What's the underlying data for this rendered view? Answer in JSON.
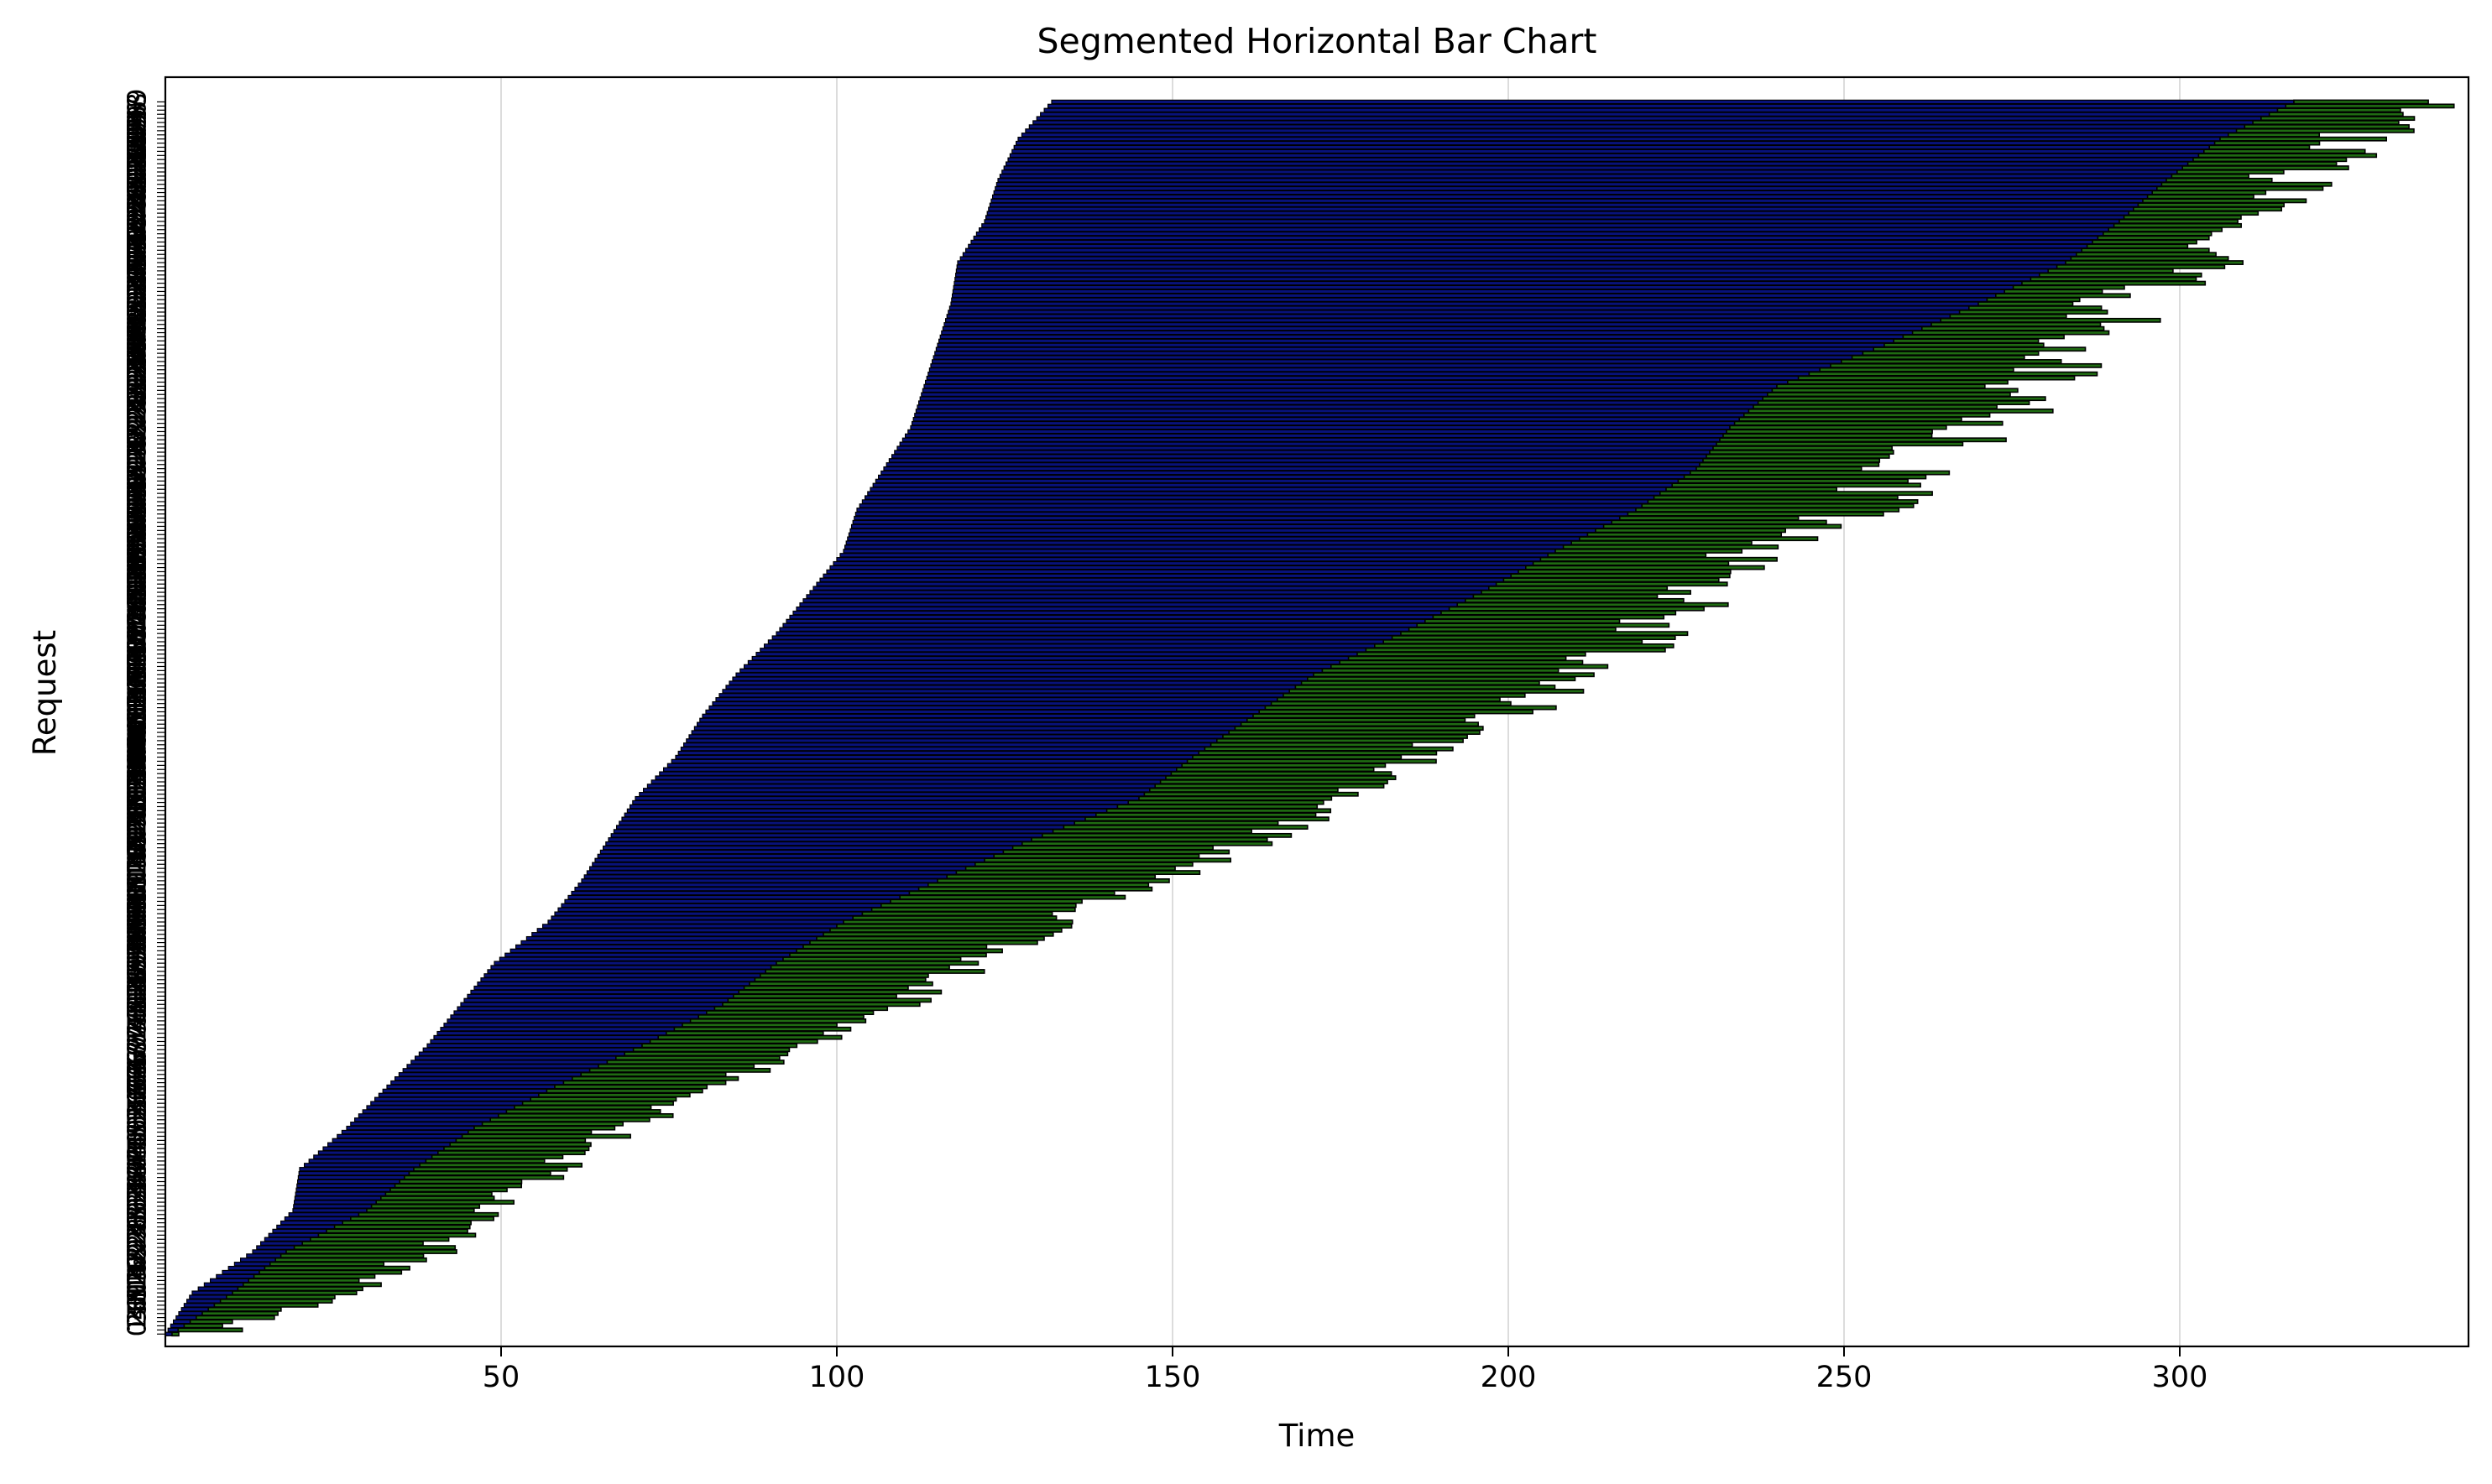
{
  "chart_data": {
    "type": "bar",
    "orientation": "horizontal",
    "stacked": true,
    "title": "Segmented Horizontal Bar Chart",
    "xlabel": "Time",
    "ylabel": "Request",
    "xlim": [
      0,
      343
    ],
    "ylim": [
      -3,
      305
    ],
    "grid": "x",
    "legend": "none",
    "x_ticks": [
      50,
      100,
      150,
      200,
      250,
      300
    ],
    "y_ticks_note": "one tick label per request index 0–299, overlapping into an illegible column",
    "y_tick_labels_visible": [
      "0",
      "5",
      "7"
    ],
    "category_count": 300,
    "colors": {
      "wait": "#08127a",
      "service": "#1f6b12",
      "edge": "#000000",
      "grid": "#dcdcdc"
    },
    "series": [
      {
        "segment": "wait",
        "role": "first segment of each bar",
        "color": "#08127a"
      },
      {
        "segment": "service",
        "role": "second segment of each bar",
        "color": "#1f6b12"
      }
    ],
    "control_points": {
      "request": [
        0,
        10,
        20,
        30,
        40,
        50,
        60,
        70,
        80,
        90,
        100,
        110,
        120,
        130,
        140,
        150,
        160,
        170,
        180,
        190,
        200,
        210,
        220,
        230,
        240,
        250,
        260,
        270,
        280,
        290,
        299
      ],
      "start": [
        0,
        4,
        13,
        19,
        20,
        27,
        33,
        39,
        44,
        49,
        57,
        62,
        66,
        70,
        76,
        80,
        85,
        91,
        96,
        101,
        103,
        107,
        111,
        113,
        115,
        117,
        118,
        122,
        124,
        127,
        132
      ],
      "wait_end": [
        1,
        10,
        18,
        30,
        37,
        46,
        58,
        71,
        83,
        91,
        101,
        115,
        129,
        145,
        153,
        162,
        171,
        184,
        196,
        207,
        219,
        228,
        233,
        240,
        256,
        270,
        283,
        291,
        298,
        306,
        317
      ],
      "end": [
        4,
        25,
        38,
        45,
        56,
        66,
        80,
        92,
        108,
        118,
        131,
        146,
        161,
        174,
        185,
        193,
        203,
        214,
        222,
        232,
        247,
        254,
        264,
        272,
        279,
        286,
        296,
        300,
        310,
        320,
        330
      ]
    }
  }
}
